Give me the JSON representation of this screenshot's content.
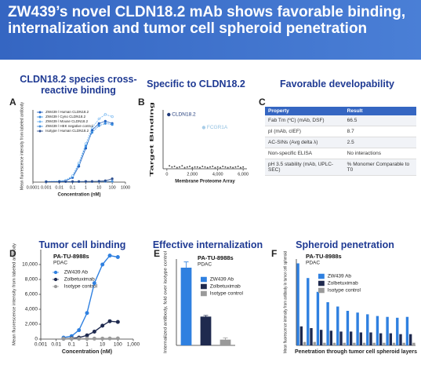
{
  "header": {
    "title": "ZW439’s novel CLDN18.2 mAb shows favorable binding, internalization and tumor cell spheroid penetration"
  },
  "headings": [
    "CLDN18.2 species cross-reactive binding",
    "Specific to CLDN18.2",
    "Favorable developability",
    "Tumor cell binding",
    "Effective internalization",
    "Spheroid penetration"
  ],
  "panels": [
    "A",
    "B",
    "C",
    "D",
    "E",
    "F"
  ],
  "table": {
    "header": [
      "Property",
      "Result"
    ],
    "rows": [
      [
        "Fab Tm (ºC) (mAb, DSF)",
        "66.5"
      ],
      [
        "pI (mAb, cIEF)",
        "8.7"
      ],
      [
        "AC-SINs (Avg delta λ)",
        "2.5"
      ],
      [
        "Non-specific ELISA",
        "No interactions"
      ],
      [
        "pH 3.5 stability (mAb, UPLC-SEC)",
        "% Monomer Comparable to T0"
      ]
    ]
  },
  "chart_data": [
    {
      "type": "line",
      "log_x": true,
      "xlim": [
        0.0001,
        1000
      ],
      "xticks": [
        0.0001,
        0.001,
        0.01,
        0.1,
        1,
        10,
        100,
        1000
      ],
      "ylim": [
        0,
        3200
      ],
      "x_label": "Concentration (nM)",
      "y_label": "Mean fluorescence intensity from labeled antibody",
      "x": [
        0.001,
        0.01,
        0.03,
        0.1,
        0.3,
        1,
        3,
        10,
        30,
        100
      ],
      "series": [
        {
          "name": "ZW439 / Human CLDN18.2",
          "color": "#1f5fbf",
          "values": [
            20,
            30,
            60,
            200,
            700,
            1500,
            2300,
            2600,
            2700,
            2600
          ]
        },
        {
          "name": "ZW439 / Cyno CLDN18.2",
          "color": "#3a8de0",
          "values": [
            20,
            35,
            70,
            250,
            800,
            1600,
            2200,
            2500,
            2600,
            2550
          ]
        },
        {
          "name": "ZW439 / Mouse CLDN18.2",
          "color": "#6fb3f0",
          "values": [
            25,
            40,
            80,
            280,
            850,
            1700,
            2400,
            2800,
            3000,
            2900
          ]
        },
        {
          "name": "ZW439 / HEK negative control",
          "color": "#4a90d9",
          "values": [
            15,
            15,
            20,
            20,
            20,
            25,
            25,
            30,
            30,
            35
          ]
        },
        {
          "name": "Isotype / Human CLDN18.2",
          "color": "#2b4d8f",
          "values": [
            20,
            20,
            25,
            25,
            25,
            30,
            30,
            40,
            60,
            150
          ]
        }
      ]
    },
    {
      "type": "scatter",
      "xlim": [
        -300,
        6300
      ],
      "xticks": [
        0,
        {
          "value": 2000,
          "label": "2,000"
        },
        {
          "value": 4000,
          "label": "4,000"
        },
        {
          "value": 6000,
          "label": "6,000"
        }
      ],
      "ylim": [
        0,
        100
      ],
      "x_label": "Membrane Proteome Array",
      "y_label": "Target Binding",
      "series": [
        {
          "name": "CLDN18.2",
          "color": "#1f3a7a",
          "x": [
            150
          ],
          "values": [
            92
          ]
        },
        {
          "name": "FCGR1A",
          "color": "#a8cde8",
          "x": [
            2900
          ],
          "values": [
            70
          ]
        },
        {
          "color": "#555555",
          "x": [
            200,
            400,
            600,
            800,
            1000,
            1200,
            1400,
            1600,
            1800,
            2000,
            2200,
            2400,
            2600,
            2800,
            3000,
            3200,
            3400,
            3600,
            3800,
            4000,
            4200,
            4400,
            4600,
            4800,
            5000,
            5200,
            5400,
            5600,
            5800,
            6000
          ],
          "values": [
            5,
            3,
            4,
            2,
            3,
            5,
            2,
            3,
            4,
            2,
            3,
            3,
            2,
            4,
            3,
            2,
            3,
            4,
            2,
            3,
            2,
            4,
            3,
            2,
            3,
            2,
            3,
            4,
            2,
            3
          ]
        }
      ]
    },
    {
      "type": "line",
      "log_x": true,
      "title": "PA-TU-8988s",
      "subtitle": "PDAC",
      "xlim": [
        0.001,
        1000
      ],
      "xticks": [
        0.001,
        0.01,
        0.1,
        1,
        10,
        100,
        {
          "value": 1000,
          "label": "1,000"
        }
      ],
      "ylim": [
        0,
        12000
      ],
      "yticks": [
        0,
        {
          "value": 2000,
          "label": "2,000"
        },
        {
          "value": 4000,
          "label": "4,000"
        },
        {
          "value": 6000,
          "label": "6,000"
        },
        {
          "value": 8000,
          "label": "8,000"
        },
        {
          "value": 10000,
          "label": "10,000"
        }
      ],
      "x_label": "Concentration (nM)",
      "y_label": "Mean fluorescence intensity from labeled antibody",
      "x": [
        0.03,
        0.1,
        0.3,
        1,
        3,
        10,
        30,
        100
      ],
      "series": [
        {
          "name": "ZW439 Ab",
          "color": "#2f80e0",
          "values": [
            200,
            400,
            1200,
            3500,
            7500,
            10000,
            11200,
            11000
          ]
        },
        {
          "name": "Zolbetuximab",
          "color": "#1f2a4f",
          "values": [
            50,
            100,
            200,
            500,
            1000,
            1800,
            2400,
            2300
          ]
        },
        {
          "name": "Isotype control",
          "color": "#9a9a9a",
          "values": [
            50,
            50,
            50,
            60,
            60,
            70,
            80,
            90
          ]
        }
      ]
    },
    {
      "type": "bar",
      "title": "PA-TU-8988s",
      "subtitle": "PDAC",
      "ylim": [
        0,
        15
      ],
      "y_label": "Internalized antibody, fold over isotype control",
      "series": [
        {
          "name": "ZW439 Ab",
          "color": "#2f80e0",
          "values": [
            13.5
          ],
          "errors": [
            1.0
          ]
        },
        {
          "name": "Zolbetuximab",
          "color": "#1f2a4f",
          "values": [
            5
          ],
          "errors": [
            0.2
          ]
        },
        {
          "name": "Isotype control",
          "color": "#9a9a9a",
          "values": [
            1
          ],
          "errors": [
            0.3
          ]
        }
      ]
    },
    {
      "type": "bar",
      "title": "PA-TU-8988s",
      "subtitle": "PDAC",
      "ylim": [
        0,
        100
      ],
      "x_label": "Penetration through tumor cell spheroid layers",
      "y_label": "Mean fluorescence intensity from antibody in tumor cell spheroid",
      "series": [
        {
          "name": "ZW439 Ab",
          "color": "#2f80e0",
          "values": [
            95,
            78,
            62,
            50,
            45,
            40,
            38,
            36,
            34,
            33,
            32,
            33
          ]
        },
        {
          "name": "Zolbetuximab",
          "color": "#1f2a4f",
          "values": [
            22,
            20,
            18,
            17,
            16,
            16,
            15,
            15,
            14,
            14,
            13,
            13
          ]
        },
        {
          "name": "Isotype control",
          "color": "#9a9a9a",
          "values": [
            4,
            4,
            3,
            3,
            3,
            3,
            3,
            3,
            3,
            3,
            3,
            3
          ]
        }
      ]
    }
  ]
}
